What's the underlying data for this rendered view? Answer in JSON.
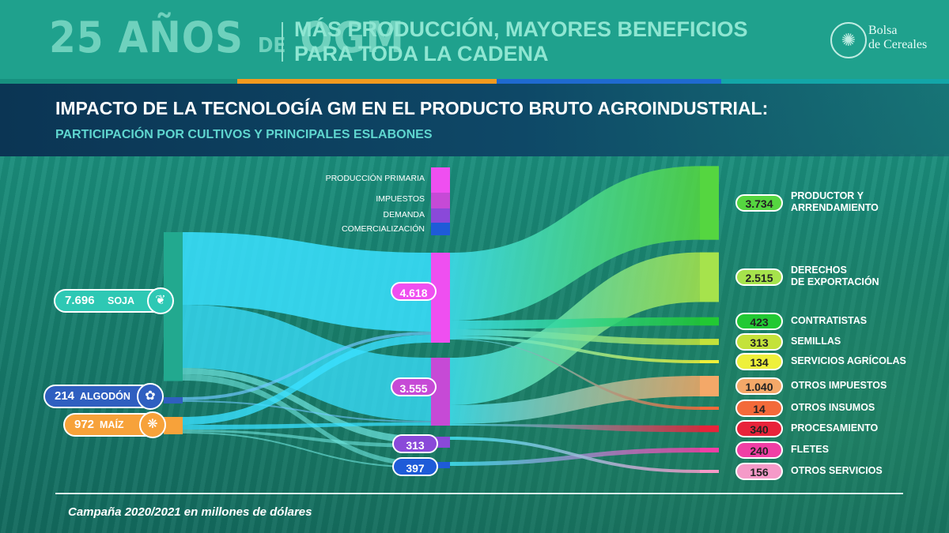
{
  "header": {
    "title_part1": "25 AÑOS",
    "title_de": "DE",
    "title_part2": "OGM",
    "subtitle_line1": "MÁS PRODUCCIÓN, MAYORES BENEFICIOS",
    "subtitle_line2": "PARA TODA LA CADENA",
    "logo_line1": "Bolsa",
    "logo_line2": "de Cereales"
  },
  "band": {
    "title": "IMPACTO DE LA TECNOLOGÍA GM EN EL PRODUCTO BRUTO AGROINDUSTRIAL:",
    "subtitle": "PARTICIPACIÓN POR CULTIVOS Y PRINCIPALES ESLABONES"
  },
  "legend": [
    {
      "label": "PRODUCCIÓN PRIMARIA",
      "color": "#ef4ff0"
    },
    {
      "label": "IMPUESTOS",
      "color": "#c64ad6"
    },
    {
      "label": "DEMANDA",
      "color": "#8a49d9"
    },
    {
      "label": "COMERCIALIZACIÓN",
      "color": "#1e5bd8"
    }
  ],
  "chart_data": {
    "type": "sankey",
    "units": "millones de dólares",
    "sources": [
      {
        "name": "SOJA",
        "value": 7696,
        "label": "7.696",
        "color": "#2ec8b4"
      },
      {
        "name": "ALGODÓN",
        "value": 214,
        "label": "214",
        "color": "#2f5fc0"
      },
      {
        "name": "MAÍZ",
        "value": 972,
        "label": "972",
        "color": "#f7a23a"
      }
    ],
    "middle": [
      {
        "name": "PRODUCCIÓN PRIMARIA",
        "value": 4618,
        "label": "4.618",
        "color": "#ef4ff0"
      },
      {
        "name": "IMPUESTOS",
        "value": 3555,
        "label": "3.555",
        "color": "#c64ad6"
      },
      {
        "name": "DEMANDA",
        "value": 313,
        "label": "313",
        "color": "#8a49d9"
      },
      {
        "name": "COMERCIALIZACIÓN",
        "value": 397,
        "label": "397",
        "color": "#1e5bd8"
      }
    ],
    "targets": [
      {
        "name": "PRODUCTOR Y ARRENDAMIENTO",
        "line1": "PRODUCTOR Y",
        "line2": "ARRENDAMIENTO",
        "value": 3734,
        "label": "3.734",
        "color": "#55d640"
      },
      {
        "name": "DERECHOS DE EXPORTACIÓN",
        "line1": "DERECHOS",
        "line2": "DE EXPORTACIÓN",
        "value": 2515,
        "label": "2.515",
        "color": "#a6e34c"
      },
      {
        "name": "CONTRATISTAS",
        "line1": "CONTRATISTAS",
        "line2": "",
        "value": 423,
        "label": "423",
        "color": "#22c933"
      },
      {
        "name": "SEMILLAS",
        "line1": "SEMILLAS",
        "line2": "",
        "value": 313,
        "label": "313",
        "color": "#c4e23a"
      },
      {
        "name": "SERVICIOS AGRÍCOLAS",
        "line1": "SERVICIOS AGRÍCOLAS",
        "line2": "",
        "value": 134,
        "label": "134",
        "color": "#eef03a"
      },
      {
        "name": "OTROS IMPUESTOS",
        "line1": "OTROS IMPUESTOS",
        "line2": "",
        "value": 1040,
        "label": "1.040",
        "color": "#f4a868"
      },
      {
        "name": "OTROS INSUMOS",
        "line1": "OTROS INSUMOS",
        "line2": "",
        "value": 14,
        "label": "14",
        "color": "#f36a3a"
      },
      {
        "name": "PROCESAMIENTO",
        "line1": "PROCESAMIENTO",
        "line2": "",
        "value": 340,
        "label": "340",
        "color": "#e8233a"
      },
      {
        "name": "FLETES",
        "line1": "FLETES",
        "line2": "",
        "value": 240,
        "label": "240",
        "color": "#f03fa5"
      },
      {
        "name": "OTROS SERVICIOS",
        "line1": "OTROS SERVICIOS",
        "line2": "",
        "value": 156,
        "label": "156",
        "color": "#f59ac8"
      }
    ]
  },
  "footer": {
    "note": "Campaña 2020/2021 en millones de dólares"
  }
}
